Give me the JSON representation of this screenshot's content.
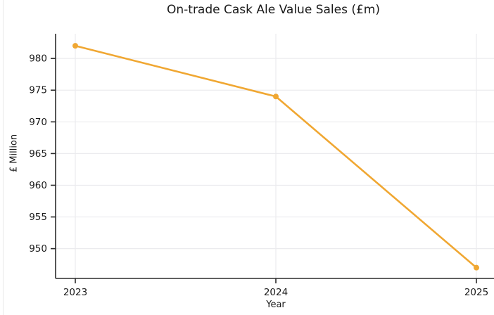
{
  "chart_data": {
    "type": "line",
    "title": "On-trade Cask Ale Value Sales (£m)",
    "xlabel": "Year",
    "ylabel": "£ Million",
    "categories": [
      "2023",
      "2024",
      "2025"
    ],
    "values": [
      982,
      974,
      947
    ],
    "yticks": [
      950,
      955,
      960,
      965,
      970,
      975,
      980
    ],
    "ylim": [
      945.3,
      983.9
    ],
    "grid": true,
    "legend": "none",
    "marker": "circle"
  },
  "colors": {
    "line": "#F0A732",
    "grid": "#EBEBEE",
    "spine": "#2B2B2B",
    "text": "#1A1A1A",
    "background": "#FFFFFF"
  }
}
